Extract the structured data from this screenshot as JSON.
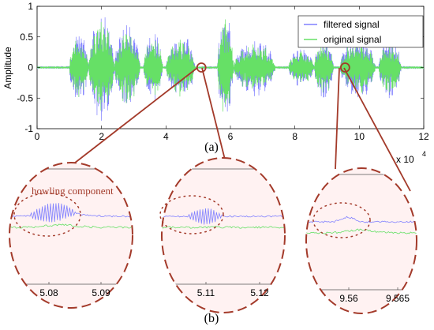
{
  "chart_data": [
    {
      "type": "line",
      "panel_label": "(a)",
      "ylabel": "Amplitude",
      "xlabel": "",
      "x_multiplier": "x 10",
      "x_multiplier_exp": "4",
      "xlim": [
        0,
        12
      ],
      "ylim": [
        -1,
        1
      ],
      "xticks": [
        "0",
        "2",
        "4",
        "6",
        "8",
        "10",
        "12"
      ],
      "yticks": [
        "-1",
        "-0.5",
        "0",
        "0.5",
        "1"
      ],
      "legend_position": "top-right",
      "series": [
        {
          "name": "filtered signal",
          "color": "#8080ff"
        },
        {
          "name": "original signal",
          "color": "#66e066"
        }
      ],
      "speech_bursts": [
        {
          "start": 1.0,
          "end": 1.6,
          "amp": 0.6
        },
        {
          "start": 1.6,
          "end": 2.4,
          "amp": 0.92
        },
        {
          "start": 2.4,
          "end": 3.2,
          "amp": 0.72
        },
        {
          "start": 3.3,
          "end": 3.9,
          "amp": 0.62
        },
        {
          "start": 4.0,
          "end": 4.9,
          "amp": 0.58
        },
        {
          "start": 5.6,
          "end": 6.1,
          "amp": 0.98
        },
        {
          "start": 6.1,
          "end": 7.4,
          "amp": 0.5
        },
        {
          "start": 7.8,
          "end": 8.6,
          "amp": 0.33
        },
        {
          "start": 8.6,
          "end": 9.2,
          "amp": 0.55
        },
        {
          "start": 9.4,
          "end": 10.5,
          "amp": 0.55
        },
        {
          "start": 10.6,
          "end": 11.3,
          "amp": 0.52
        }
      ],
      "zoom_markers": [
        {
          "x": 5.1,
          "y": 0
        },
        {
          "x": 9.56,
          "y": 0
        }
      ]
    },
    {
      "type": "line",
      "panel_label": "(b)",
      "annotation": "howling component",
      "zooms": [
        {
          "xticks": [
            "5.08",
            "5.09"
          ],
          "howling": "strong"
        },
        {
          "xticks": [
            "5.11",
            "5.12"
          ],
          "howling": "medium"
        },
        {
          "xticks": [
            "9.56",
            "9.565"
          ],
          "howling": "weak"
        }
      ]
    }
  ],
  "colors": {
    "filtered": "#8080ff",
    "original": "#66e066",
    "ellipse_stroke": "#a33a2a",
    "ellipse_fill": "#fff2f2",
    "connector": "#a33a2a"
  }
}
